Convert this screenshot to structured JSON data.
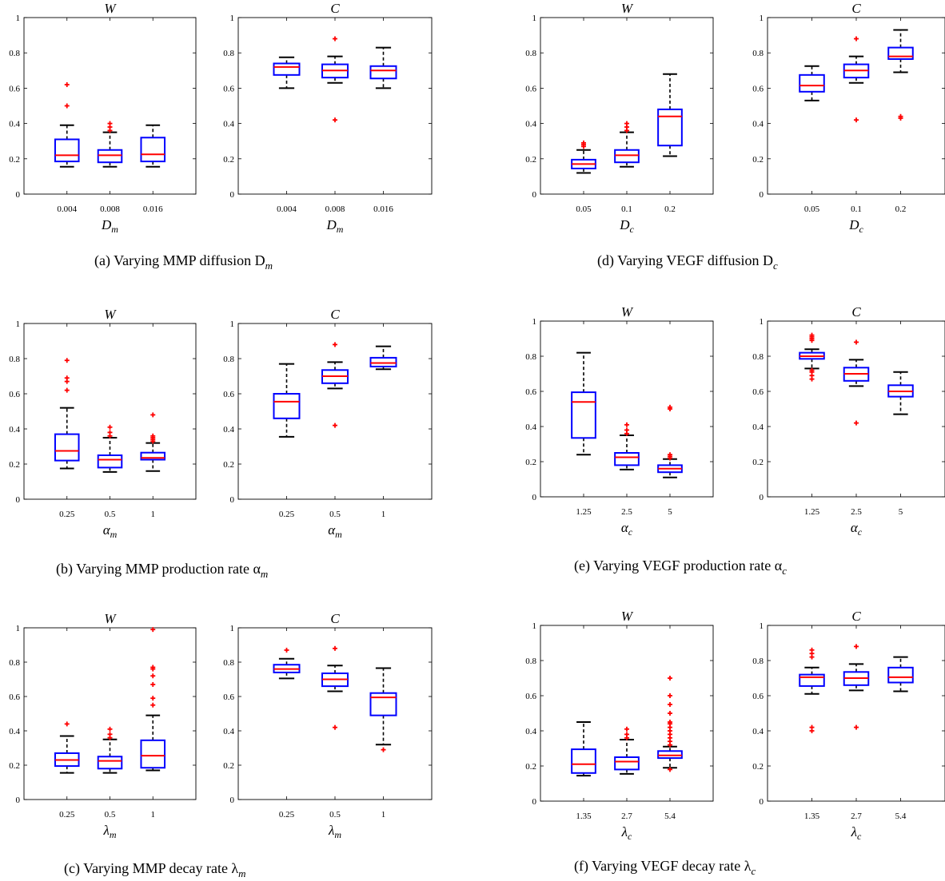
{
  "figure": {
    "panels": [
      {
        "id": "a",
        "caption": "(a) Varying MMP diffusion D",
        "caption_sub": "m",
        "charts": [
          {
            "type": "box",
            "title": "W",
            "xlabel_sym": "D",
            "xlabel_sub": "m",
            "ylim": [
              0,
              1
            ],
            "yticks": [
              "0",
              "0.2",
              "0.4",
              "0.6",
              "0.8",
              "1"
            ],
            "categories": [
              "0.004",
              "0.008",
              "0.016"
            ],
            "boxes": [
              {
                "lw": 0.155,
                "q1": 0.185,
                "med": 0.22,
                "q3": 0.31,
                "uw": 0.39,
                "outliers": [
                  0.5,
                  0.62
                ]
              },
              {
                "lw": 0.155,
                "q1": 0.18,
                "med": 0.22,
                "q3": 0.25,
                "uw": 0.35,
                "outliers": [
                  0.36,
                  0.38,
                  0.4
                ]
              },
              {
                "lw": 0.155,
                "q1": 0.185,
                "med": 0.225,
                "q3": 0.32,
                "uw": 0.39,
                "outliers": []
              }
            ]
          },
          {
            "type": "box",
            "title": "C",
            "xlabel_sym": "D",
            "xlabel_sub": "m",
            "ylim": [
              0,
              1
            ],
            "yticks": [
              "0",
              "0.2",
              "0.4",
              "0.6",
              "0.8",
              "1"
            ],
            "categories": [
              "0.004",
              "0.008",
              "0.016"
            ],
            "boxes": [
              {
                "lw": 0.6,
                "q1": 0.675,
                "med": 0.72,
                "q3": 0.74,
                "uw": 0.775,
                "outliers": []
              },
              {
                "lw": 0.63,
                "q1": 0.66,
                "med": 0.7,
                "q3": 0.735,
                "uw": 0.78,
                "outliers": [
                  0.42,
                  0.88
                ]
              },
              {
                "lw": 0.6,
                "q1": 0.655,
                "med": 0.7,
                "q3": 0.725,
                "uw": 0.83,
                "outliers": []
              }
            ]
          }
        ]
      },
      {
        "id": "d",
        "caption": "(d) Varying VEGF diffusion D",
        "caption_sub": "c",
        "charts": [
          {
            "type": "box",
            "title": "W",
            "xlabel_sym": "D",
            "xlabel_sub": "c",
            "ylim": [
              0,
              1
            ],
            "yticks": [
              "0",
              "0.2",
              "0.4",
              "0.6",
              "0.8",
              "1"
            ],
            "categories": [
              "0.05",
              "0.1",
              "0.2"
            ],
            "boxes": [
              {
                "lw": 0.12,
                "q1": 0.145,
                "med": 0.17,
                "q3": 0.195,
                "uw": 0.25,
                "outliers": [
                  0.27,
                  0.28,
                  0.29
                ]
              },
              {
                "lw": 0.155,
                "q1": 0.18,
                "med": 0.22,
                "q3": 0.25,
                "uw": 0.35,
                "outliers": [
                  0.36,
                  0.38,
                  0.4
                ]
              },
              {
                "lw": 0.215,
                "q1": 0.275,
                "med": 0.44,
                "q3": 0.48,
                "uw": 0.68,
                "outliers": []
              }
            ]
          },
          {
            "type": "box",
            "title": "C",
            "xlabel_sym": "D",
            "xlabel_sub": "c",
            "ylim": [
              0,
              1
            ],
            "yticks": [
              "0",
              "0.2",
              "0.4",
              "0.6",
              "0.8",
              "1"
            ],
            "categories": [
              "0.05",
              "0.1",
              "0.2"
            ],
            "boxes": [
              {
                "lw": 0.53,
                "q1": 0.58,
                "med": 0.615,
                "q3": 0.675,
                "uw": 0.725,
                "outliers": []
              },
              {
                "lw": 0.63,
                "q1": 0.66,
                "med": 0.7,
                "q3": 0.735,
                "uw": 0.78,
                "outliers": [
                  0.42,
                  0.88
                ]
              },
              {
                "lw": 0.69,
                "q1": 0.765,
                "med": 0.78,
                "q3": 0.83,
                "uw": 0.93,
                "outliers": [
                  0.43,
                  0.44
                ]
              }
            ]
          }
        ]
      },
      {
        "id": "b",
        "caption": "(b) Varying MMP production rate α",
        "caption_sub": "m",
        "charts": [
          {
            "type": "box",
            "title": "W",
            "xlabel_sym": "α",
            "xlabel_sub": "m",
            "ylim": [
              0,
              1
            ],
            "yticks": [
              "0",
              "0.2",
              "0.4",
              "0.6",
              "0.8",
              "1"
            ],
            "categories": [
              "0.25",
              "0.5",
              "1"
            ],
            "boxes": [
              {
                "lw": 0.175,
                "q1": 0.22,
                "med": 0.275,
                "q3": 0.37,
                "uw": 0.52,
                "outliers": [
                  0.62,
                  0.67,
                  0.69,
                  0.79
                ]
              },
              {
                "lw": 0.155,
                "q1": 0.18,
                "med": 0.225,
                "q3": 0.25,
                "uw": 0.35,
                "outliers": [
                  0.36,
                  0.38,
                  0.41
                ]
              },
              {
                "lw": 0.16,
                "q1": 0.225,
                "med": 0.235,
                "q3": 0.265,
                "uw": 0.32,
                "outliers": [
                  0.33,
                  0.34,
                  0.35,
                  0.36,
                  0.48
                ]
              }
            ]
          },
          {
            "type": "box",
            "title": "C",
            "xlabel_sym": "α",
            "xlabel_sub": "m",
            "ylim": [
              0,
              1
            ],
            "yticks": [
              "0",
              "0.2",
              "0.4",
              "0.6",
              "0.8",
              "1"
            ],
            "categories": [
              "0.25",
              "0.5",
              "1"
            ],
            "boxes": [
              {
                "lw": 0.355,
                "q1": 0.46,
                "med": 0.555,
                "q3": 0.6,
                "uw": 0.77,
                "outliers": []
              },
              {
                "lw": 0.63,
                "q1": 0.66,
                "med": 0.7,
                "q3": 0.735,
                "uw": 0.78,
                "outliers": [
                  0.42,
                  0.88
                ]
              },
              {
                "lw": 0.74,
                "q1": 0.755,
                "med": 0.775,
                "q3": 0.805,
                "uw": 0.87,
                "outliers": []
              }
            ]
          }
        ]
      },
      {
        "id": "e",
        "caption": "(e) Varying VEGF production rate α",
        "caption_sub": "c",
        "charts": [
          {
            "type": "box",
            "title": "W",
            "xlabel_sym": "α",
            "xlabel_sub": "c",
            "ylim": [
              0,
              1
            ],
            "yticks": [
              "0",
              "0.2",
              "0.4",
              "0.6",
              "0.8",
              "1"
            ],
            "categories": [
              "1.25",
              "2.5",
              "5"
            ],
            "boxes": [
              {
                "lw": 0.24,
                "q1": 0.335,
                "med": 0.54,
                "q3": 0.595,
                "uw": 0.82,
                "outliers": []
              },
              {
                "lw": 0.155,
                "q1": 0.18,
                "med": 0.225,
                "q3": 0.25,
                "uw": 0.35,
                "outliers": [
                  0.36,
                  0.38,
                  0.41
                ]
              },
              {
                "lw": 0.11,
                "q1": 0.14,
                "med": 0.16,
                "q3": 0.18,
                "uw": 0.215,
                "outliers": [
                  0.22,
                  0.23,
                  0.24,
                  0.5,
                  0.51
                ]
              }
            ]
          },
          {
            "type": "box",
            "title": "C",
            "xlabel_sym": "α",
            "xlabel_sub": "c",
            "ylim": [
              0,
              1
            ],
            "yticks": [
              "0",
              "0.2",
              "0.4",
              "0.6",
              "0.8",
              "1"
            ],
            "categories": [
              "1.25",
              "2.5",
              "5"
            ],
            "boxes": [
              {
                "lw": 0.73,
                "q1": 0.785,
                "med": 0.8,
                "q3": 0.82,
                "uw": 0.84,
                "outliers": [
                  0.67,
                  0.69,
                  0.71,
                  0.72,
                  0.89,
                  0.9,
                  0.91,
                  0.92
                ]
              },
              {
                "lw": 0.63,
                "q1": 0.66,
                "med": 0.7,
                "q3": 0.735,
                "uw": 0.78,
                "outliers": [
                  0.42,
                  0.88
                ]
              },
              {
                "lw": 0.47,
                "q1": 0.57,
                "med": 0.6,
                "q3": 0.635,
                "uw": 0.71,
                "outliers": []
              }
            ]
          }
        ]
      },
      {
        "id": "c",
        "caption": "(c) Varying MMP decay rate λ",
        "caption_sub": "m",
        "charts": [
          {
            "type": "box",
            "title": "W",
            "xlabel_sym": "λ",
            "xlabel_sub": "m",
            "ylim": [
              0,
              1
            ],
            "yticks": [
              "0",
              "0.2",
              "0.4",
              "0.6",
              "0.8",
              "1"
            ],
            "categories": [
              "0.25",
              "0.5",
              "1"
            ],
            "boxes": [
              {
                "lw": 0.155,
                "q1": 0.195,
                "med": 0.23,
                "q3": 0.27,
                "uw": 0.37,
                "outliers": [
                  0.44
                ]
              },
              {
                "lw": 0.155,
                "q1": 0.18,
                "med": 0.225,
                "q3": 0.25,
                "uw": 0.35,
                "outliers": [
                  0.36,
                  0.38,
                  0.41
                ]
              },
              {
                "lw": 0.17,
                "q1": 0.185,
                "med": 0.255,
                "q3": 0.345,
                "uw": 0.49,
                "outliers": [
                  0.55,
                  0.59,
                  0.67,
                  0.72,
                  0.76,
                  0.77,
                  0.99
                ]
              }
            ]
          },
          {
            "type": "box",
            "title": "C",
            "xlabel_sym": "λ",
            "xlabel_sub": "m",
            "ylim": [
              0,
              1
            ],
            "yticks": [
              "0",
              "0.2",
              "0.4",
              "0.6",
              "0.8",
              "1"
            ],
            "categories": [
              "0.25",
              "0.5",
              "1"
            ],
            "boxes": [
              {
                "lw": 0.705,
                "q1": 0.74,
                "med": 0.76,
                "q3": 0.785,
                "uw": 0.82,
                "outliers": [
                  0.87
                ]
              },
              {
                "lw": 0.63,
                "q1": 0.66,
                "med": 0.7,
                "q3": 0.735,
                "uw": 0.78,
                "outliers": [
                  0.42,
                  0.88
                ]
              },
              {
                "lw": 0.32,
                "q1": 0.49,
                "med": 0.595,
                "q3": 0.62,
                "uw": 0.765,
                "outliers": [
                  0.29
                ]
              }
            ]
          }
        ]
      },
      {
        "id": "f",
        "caption": "(f) Varying VEGF decay rate λ",
        "caption_sub": "c",
        "charts": [
          {
            "type": "box",
            "title": "W",
            "xlabel_sym": "λ",
            "xlabel_sub": "c",
            "ylim": [
              0,
              1
            ],
            "yticks": [
              "0",
              "0.2",
              "0.4",
              "0.6",
              "0.8",
              "1"
            ],
            "categories": [
              "1.35",
              "2.7",
              "5.4"
            ],
            "boxes": [
              {
                "lw": 0.145,
                "q1": 0.16,
                "med": 0.21,
                "q3": 0.295,
                "uw": 0.45,
                "outliers": []
              },
              {
                "lw": 0.155,
                "q1": 0.18,
                "med": 0.225,
                "q3": 0.25,
                "uw": 0.35,
                "outliers": [
                  0.36,
                  0.38,
                  0.41
                ]
              },
              {
                "lw": 0.19,
                "q1": 0.245,
                "med": 0.26,
                "q3": 0.285,
                "uw": 0.31,
                "outliers": [
                  0.18,
                  0.32,
                  0.34,
                  0.36,
                  0.38,
                  0.4,
                  0.42,
                  0.44,
                  0.45,
                  0.5,
                  0.55,
                  0.6,
                  0.7
                ]
              }
            ]
          },
          {
            "type": "box",
            "title": "C",
            "xlabel_sym": "λ",
            "xlabel_sub": "c",
            "ylim": [
              0,
              1
            ],
            "yticks": [
              "0",
              "0.2",
              "0.4",
              "0.6",
              "0.8",
              "1"
            ],
            "categories": [
              "1.35",
              "2.7",
              "5.4"
            ],
            "boxes": [
              {
                "lw": 0.61,
                "q1": 0.655,
                "med": 0.705,
                "q3": 0.72,
                "uw": 0.76,
                "outliers": [
                  0.4,
                  0.42,
                  0.82,
                  0.84,
                  0.86
                ]
              },
              {
                "lw": 0.63,
                "q1": 0.66,
                "med": 0.7,
                "q3": 0.735,
                "uw": 0.78,
                "outliers": [
                  0.42,
                  0.88
                ]
              },
              {
                "lw": 0.625,
                "q1": 0.675,
                "med": 0.705,
                "q3": 0.76,
                "uw": 0.82,
                "outliers": []
              }
            ]
          }
        ]
      }
    ]
  },
  "style": {
    "box_color": "#0000ff",
    "median_color": "#ff0000",
    "whisker_color": "#000000",
    "outlier_color": "#ff0000"
  }
}
